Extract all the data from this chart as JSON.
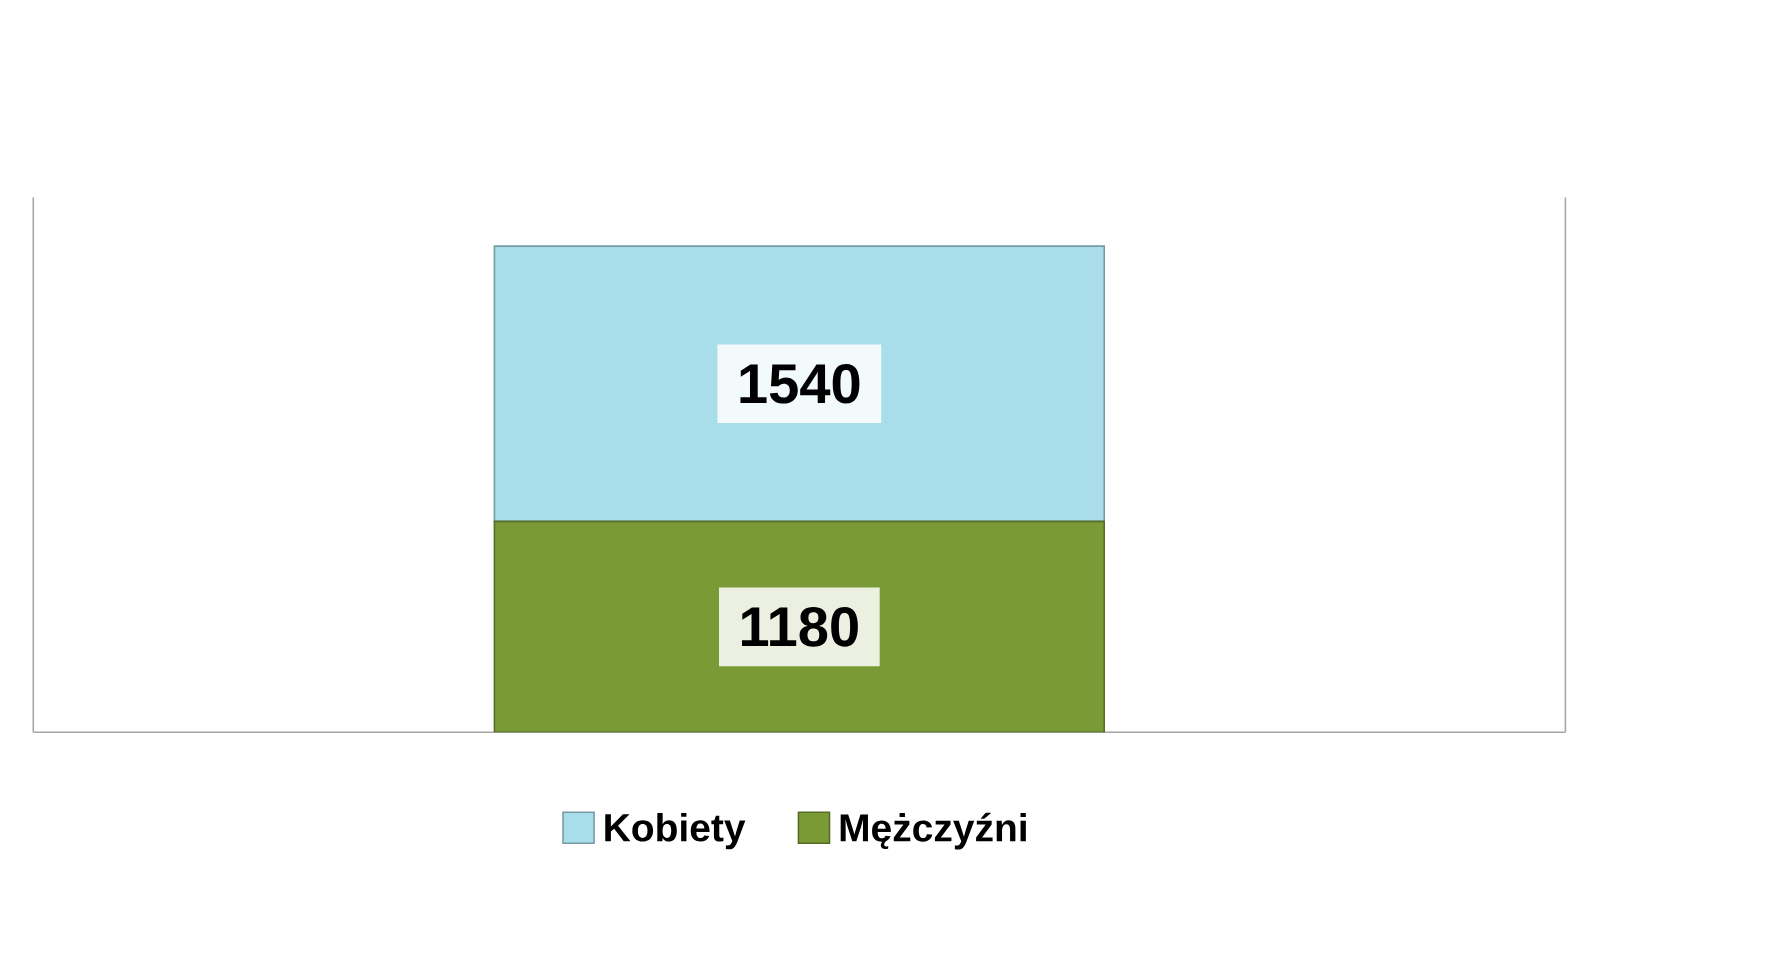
{
  "chart_data": {
    "type": "bar",
    "stacked": true,
    "categories": [
      null
    ],
    "data_labels": true,
    "legend": "bottom",
    "series": [
      {
        "name": "Mężczyźni",
        "color": "#7a9a36",
        "values": [
          1180
        ]
      },
      {
        "name": "Kobiety",
        "color": "#a9dde9",
        "values": [
          1540
        ]
      }
    ]
  }
}
